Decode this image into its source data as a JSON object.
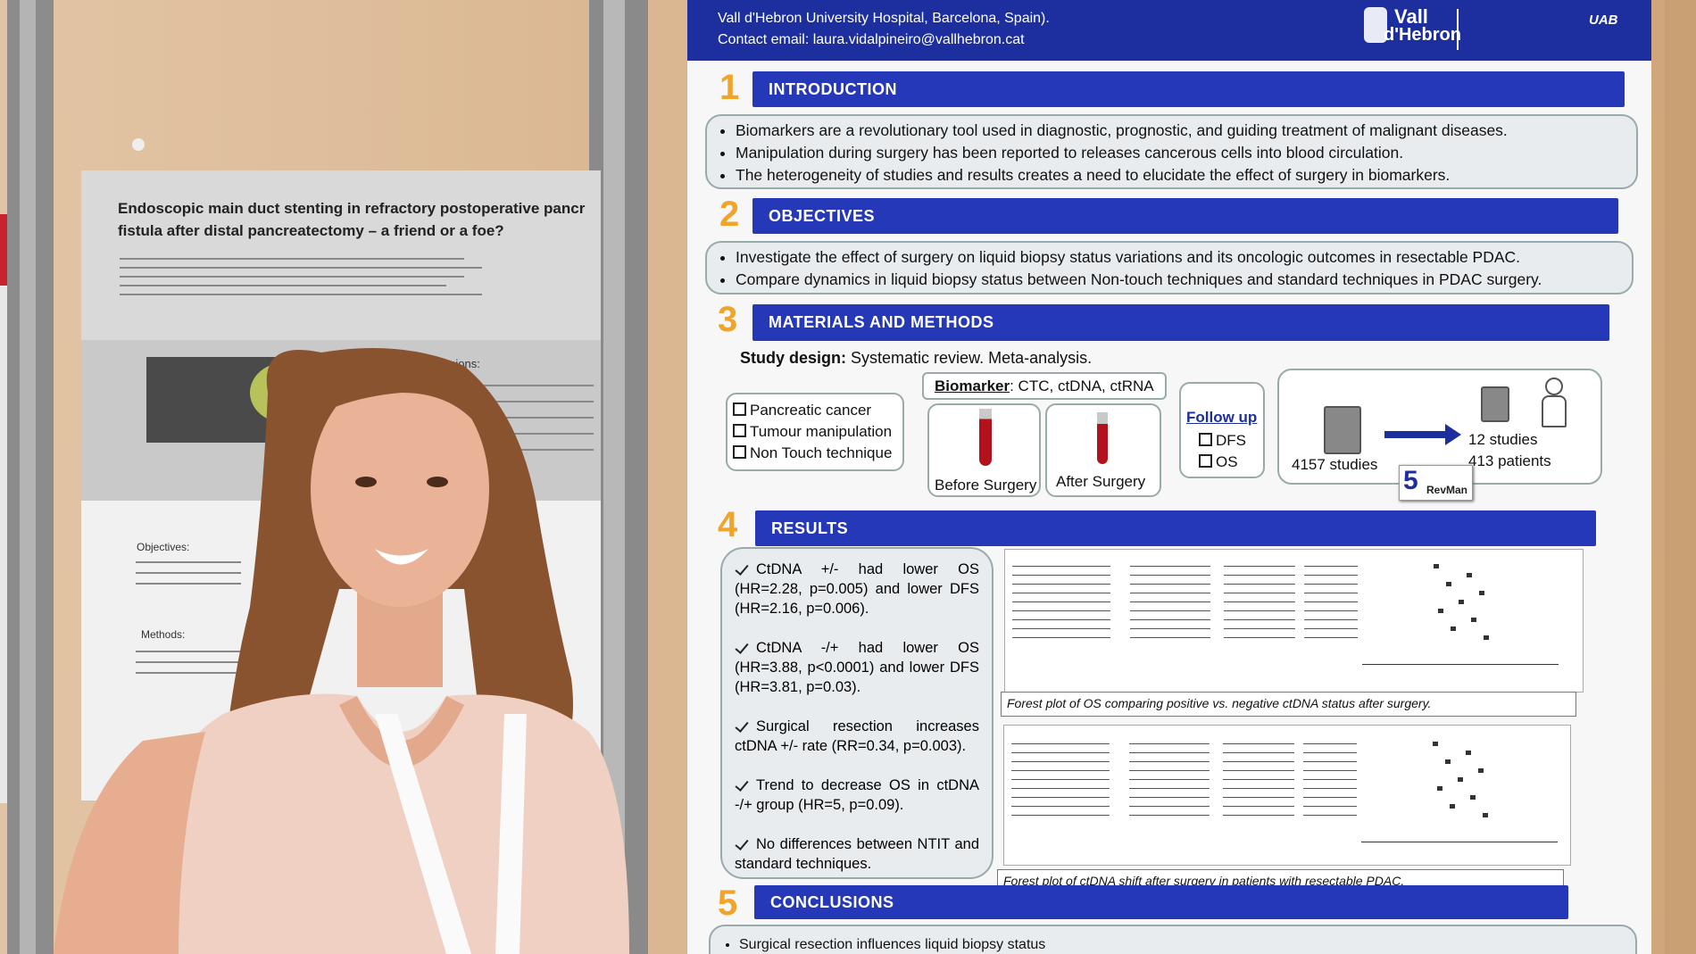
{
  "left_poster": {
    "title_lines": [
      "Endoscopic main duct stenting in refractory postoperative pancr",
      "fistula after distal pancreatectomy – a friend or a foe?"
    ],
    "conclusions_heading": "nclusions:",
    "objectives_heading": "Objectives:",
    "methods_heading": "Methods:"
  },
  "poster": {
    "header": {
      "affiliation": "Vall d'Hebron University Hospital, Barcelona, Spain).",
      "contact": "Contact email: laura.vidalpineiro@vallhebron.cat",
      "logos": [
        "Vall",
        "d'Hebron",
        "UAB"
      ]
    },
    "introduction": {
      "number": "1",
      "title": "INTRODUCTION",
      "bullets": [
        "Biomarkers are a revolutionary tool used in diagnostic, prognostic, and guiding treatment of malignant diseases.",
        "Manipulation during surgery  has been reported to releases cancerous cells into blood circulation.",
        "The heterogeneity of studies and results creates a need to elucidate the effect of surgery in biomarkers."
      ]
    },
    "objectives": {
      "number": "2",
      "title": "OBJECTIVES",
      "bullets": [
        "Investigate the effect of surgery on liquid biopsy status variations and its oncologic outcomes in resectable PDAC.",
        "Compare dynamics in liquid biopsy status between Non-touch techniques and standard techniques in PDAC surgery."
      ]
    },
    "methods": {
      "number": "3",
      "title": "MATERIALS AND METHODS",
      "study_design_label": "Study design:",
      "study_design": "Systematic review. Meta-analysis.",
      "criteria": [
        "Pancreatic cancer",
        "Tumour manipulation",
        "Non Touch technique"
      ],
      "biomarker_label": "Biomarker",
      "biomarker_text": ": CTC, ctDNA, ctRNA",
      "samples": [
        "Before Surgery",
        "After Surgery"
      ],
      "follow_up_title": "Follow up",
      "follow_up": [
        "DFS",
        "OS"
      ],
      "studies_found": "4157 studies",
      "studies_included": "12 studies",
      "patients": "413 patients",
      "software": "RevMan",
      "software_version": "5"
    },
    "results": {
      "number": "4",
      "title": "RESULTS",
      "bullets": [
        "CtDNA +/- had lower OS (HR=2.28, p=0.005) and lower DFS (HR=2.16, p=0.006).",
        "CtDNA -/+ had lower OS (HR=3.88, p<0.0001) and lower DFS (HR=3.81, p=0.03).",
        "Surgical resection increases ctDNA +/- rate (RR=0.34, p=0.003).",
        "Trend to decrease OS in ctDNA -/+ group (HR=5, p=0.09).",
        "No differences between NTIT and standard techniques."
      ],
      "forest_captions": [
        "Forest plot of OS comparing positive vs. negative ctDNA status after surgery.",
        "Forest plot of ctDNA shift after surgery in patients with resectable PDAC."
      ]
    },
    "conclusions": {
      "number": "5",
      "title": "CONCLUSIONS",
      "bullets": [
        "Surgical resection influences liquid biopsy status"
      ]
    }
  }
}
